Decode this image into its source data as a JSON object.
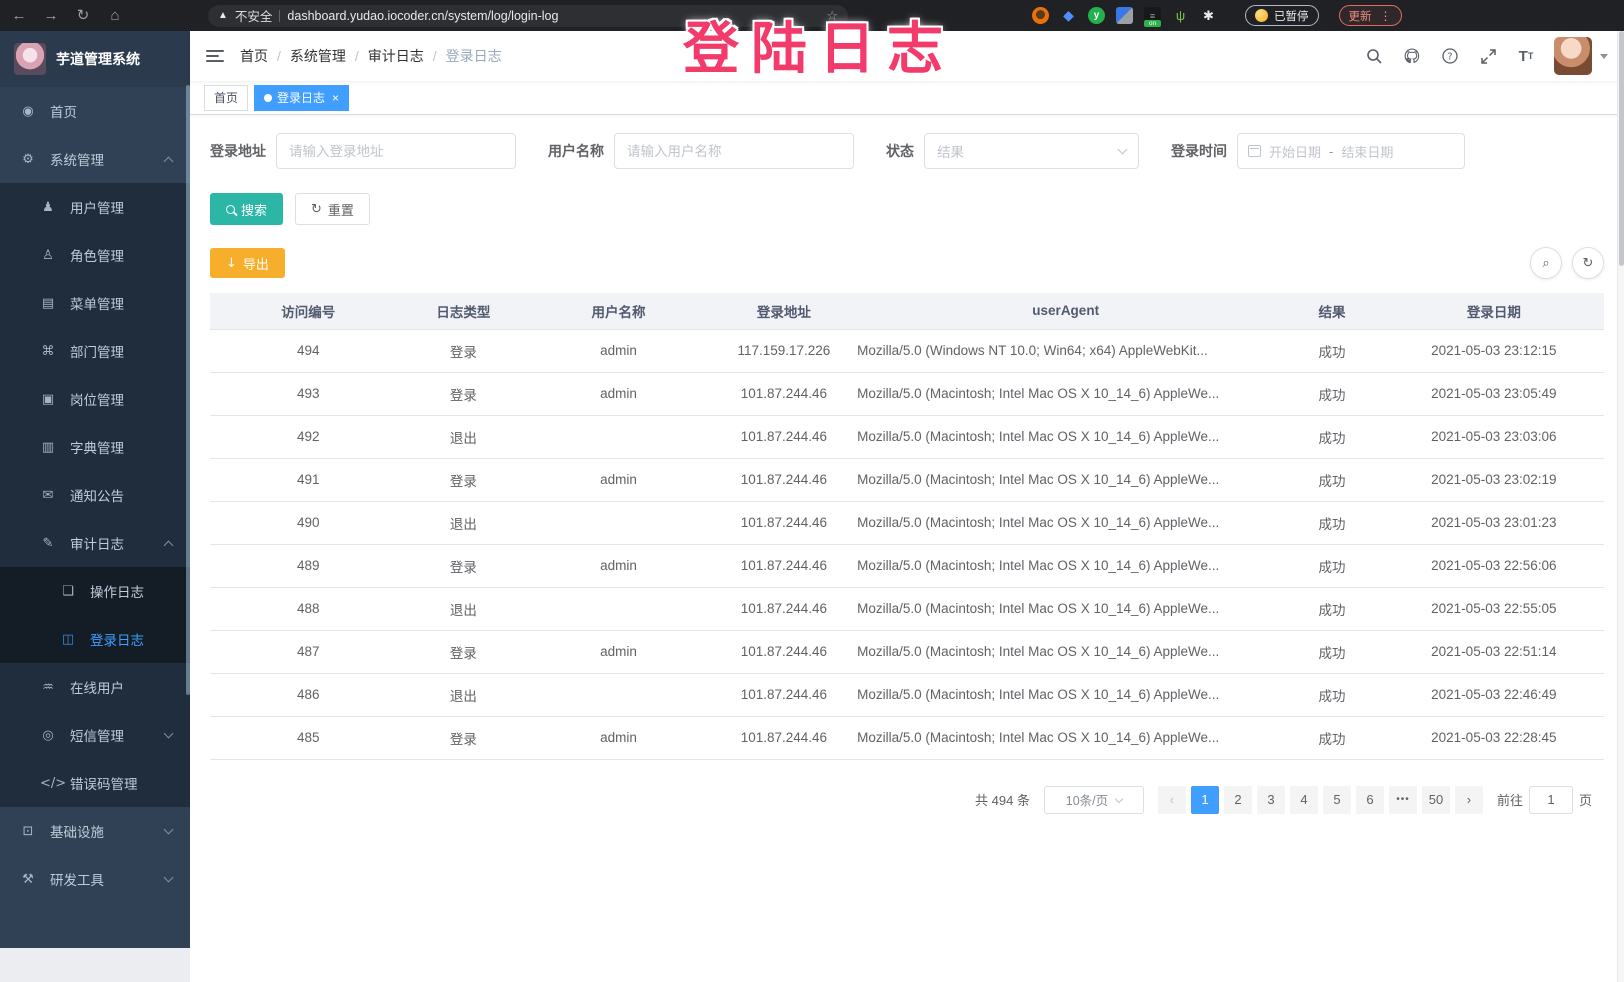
{
  "colors": {
    "primary": "#409EFF",
    "search": "#2bb6a6",
    "export": "#f7ae2b",
    "overlay": "#f23a6b",
    "sidebar_bg": "#304156"
  },
  "browser": {
    "security_label": "不安全",
    "url": "dashboard.yudao.iocoder.cn/system/log/login-log",
    "ext_on_badge": "on",
    "ext_green_letter": "y",
    "paused_label": "已暂停",
    "update_label": "更新",
    "kebab": "⋮",
    "back": "←",
    "forward": "→",
    "reload": "↻",
    "home": "⌂",
    "star": "☆",
    "warning": "▲"
  },
  "overlay": {
    "text": "登陆日志"
  },
  "sidebar": {
    "title": "芋道管理系统",
    "items": [
      {
        "key": "home",
        "label": "首页",
        "icon": "dashboard",
        "glyph": "◉",
        "level": 0
      },
      {
        "key": "system",
        "label": "系统管理",
        "icon": "gear",
        "glyph": "⚙",
        "level": 0,
        "chevron": "up"
      },
      {
        "key": "users",
        "label": "用户管理",
        "icon": "user",
        "glyph": "♟",
        "level": 1
      },
      {
        "key": "roles",
        "label": "角色管理",
        "icon": "roles",
        "glyph": "♙",
        "level": 1
      },
      {
        "key": "menus",
        "label": "菜单管理",
        "icon": "menu",
        "glyph": "▤",
        "level": 1
      },
      {
        "key": "depts",
        "label": "部门管理",
        "icon": "org-tree",
        "glyph": "⌘",
        "level": 1
      },
      {
        "key": "posts",
        "label": "岗位管理",
        "icon": "post",
        "glyph": "▣",
        "level": 1
      },
      {
        "key": "dict",
        "label": "字典管理",
        "icon": "dict",
        "glyph": "▥",
        "level": 1
      },
      {
        "key": "notice",
        "label": "通知公告",
        "icon": "notice",
        "glyph": "✉",
        "level": 1
      },
      {
        "key": "audit-log",
        "label": "审计日志",
        "icon": "audit",
        "glyph": "✎",
        "level": 1,
        "chevron": "up"
      },
      {
        "key": "operate-log",
        "label": "操作日志",
        "icon": "doc",
        "glyph": "❏",
        "level": 2
      },
      {
        "key": "login-log",
        "label": "登录日志",
        "icon": "login-log",
        "glyph": "◫",
        "level": 2,
        "active": true
      },
      {
        "key": "online",
        "label": "在线用户",
        "icon": "online",
        "glyph": "♒",
        "level": 1
      },
      {
        "key": "sms",
        "label": "短信管理",
        "icon": "sms",
        "glyph": "◎",
        "level": 1,
        "chevron": "down"
      },
      {
        "key": "error-code",
        "label": "错误码管理",
        "icon": "code",
        "glyph": "</>",
        "level": 1
      },
      {
        "key": "infra",
        "label": "基础设施",
        "icon": "infra",
        "glyph": "⊡",
        "level": 0,
        "chevron": "down"
      },
      {
        "key": "devtools",
        "label": "研发工具",
        "icon": "tool",
        "glyph": "⚒",
        "level": 0,
        "chevron": "down"
      }
    ]
  },
  "header": {
    "breadcrumb": [
      "首页",
      "系统管理",
      "审计日志",
      "登录日志"
    ]
  },
  "tags": [
    {
      "label": "首页",
      "active": false,
      "dot": false,
      "closable": false
    },
    {
      "label": "登录日志",
      "active": true,
      "dot": true,
      "closable": true
    }
  ],
  "filters": {
    "login_address": {
      "label": "登录地址",
      "placeholder": "请输入登录地址"
    },
    "username": {
      "label": "用户名称",
      "placeholder": "请输入用户名称"
    },
    "status": {
      "label": "状态",
      "placeholder": "结果"
    },
    "login_time": {
      "label": "登录时间",
      "start_placeholder": "开始日期",
      "separator": "-",
      "end_placeholder": "结束日期"
    },
    "search_label": "搜索",
    "reset_label": "重置",
    "reset_icon": "↻"
  },
  "toolbar": {
    "export_label": "导出",
    "export_icon": "↓",
    "hide_search_icon": "⌕",
    "refresh_icon": "↻"
  },
  "table": {
    "columns": [
      "访问编号",
      "日志类型",
      "用户名称",
      "登录地址",
      "userAgent",
      "结果",
      "登录日期"
    ],
    "rows": [
      [
        "494",
        "登录",
        "admin",
        "117.159.17.226",
        "Mozilla/5.0 (Windows NT 10.0; Win64; x64) AppleWebKit...",
        "成功",
        "2021-05-03 23:12:15"
      ],
      [
        "493",
        "登录",
        "admin",
        "101.87.244.46",
        "Mozilla/5.0 (Macintosh; Intel Mac OS X 10_14_6) AppleWe...",
        "成功",
        "2021-05-03 23:05:49"
      ],
      [
        "492",
        "退出",
        "",
        "101.87.244.46",
        "Mozilla/5.0 (Macintosh; Intel Mac OS X 10_14_6) AppleWe...",
        "成功",
        "2021-05-03 23:03:06"
      ],
      [
        "491",
        "登录",
        "admin",
        "101.87.244.46",
        "Mozilla/5.0 (Macintosh; Intel Mac OS X 10_14_6) AppleWe...",
        "成功",
        "2021-05-03 23:02:19"
      ],
      [
        "490",
        "退出",
        "",
        "101.87.244.46",
        "Mozilla/5.0 (Macintosh; Intel Mac OS X 10_14_6) AppleWe...",
        "成功",
        "2021-05-03 23:01:23"
      ],
      [
        "489",
        "登录",
        "admin",
        "101.87.244.46",
        "Mozilla/5.0 (Macintosh; Intel Mac OS X 10_14_6) AppleWe...",
        "成功",
        "2021-05-03 22:56:06"
      ],
      [
        "488",
        "退出",
        "",
        "101.87.244.46",
        "Mozilla/5.0 (Macintosh; Intel Mac OS X 10_14_6) AppleWe...",
        "成功",
        "2021-05-03 22:55:05"
      ],
      [
        "487",
        "登录",
        "admin",
        "101.87.244.46",
        "Mozilla/5.0 (Macintosh; Intel Mac OS X 10_14_6) AppleWe...",
        "成功",
        "2021-05-03 22:51:14"
      ],
      [
        "486",
        "退出",
        "",
        "101.87.244.46",
        "Mozilla/5.0 (Macintosh; Intel Mac OS X 10_14_6) AppleWe...",
        "成功",
        "2021-05-03 22:46:49"
      ],
      [
        "485",
        "登录",
        "admin",
        "101.87.244.46",
        "Mozilla/5.0 (Macintosh; Intel Mac OS X 10_14_6) AppleWe...",
        "成功",
        "2021-05-03 22:28:45"
      ]
    ]
  },
  "pagination": {
    "total_text": "共 494 条",
    "page_size": "10条/页",
    "items": [
      "prev",
      "1",
      "2",
      "3",
      "4",
      "5",
      "6",
      "more",
      "50",
      "next"
    ],
    "active_page": "1",
    "goto_label": "前往",
    "goto_value": "1",
    "unit_label": "页"
  }
}
